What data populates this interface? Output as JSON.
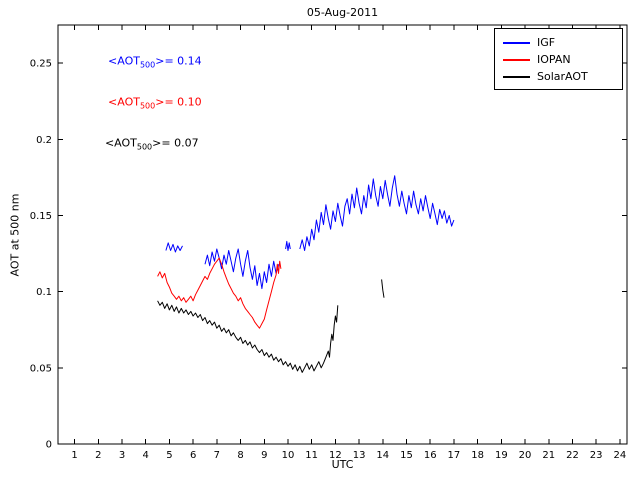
{
  "chart_data": {
    "type": "line",
    "title": "05-Aug-2011",
    "xlabel": "UTC",
    "ylabel": "AOT at 500 nm",
    "xlim": [
      0.3,
      24.3
    ],
    "ylim": [
      0,
      0.275
    ],
    "x_ticks": [
      1,
      2,
      3,
      4,
      5,
      6,
      7,
      8,
      9,
      10,
      11,
      12,
      13,
      14,
      15,
      16,
      17,
      18,
      19,
      20,
      21,
      22,
      23,
      24
    ],
    "y_ticks": [
      0,
      0.05,
      0.1,
      0.15,
      0.2,
      0.25
    ],
    "y_tick_labels": [
      "0",
      "0.05",
      "0.1",
      "0.15",
      "0.2",
      "0.25"
    ],
    "grid": false,
    "legend": {
      "position": "top-right",
      "entries": [
        {
          "label": "IGF",
          "color": "#0000ff"
        },
        {
          "label": "IOPAN",
          "color": "#ff0000"
        },
        {
          "label": "SolarAOT",
          "color": "#000000"
        }
      ]
    },
    "annotations": [
      {
        "prefix": "<AOT",
        "sub": "500",
        "suffix": ">= 0.14",
        "color": "#0000ff",
        "x": 2.41,
        "y": 0.251
      },
      {
        "prefix": "<AOT",
        "sub": "500",
        "suffix": ">= 0.10",
        "color": "#ff0000",
        "x": 2.41,
        "y": 0.224
      },
      {
        "prefix": "<AOT",
        "sub": "500",
        "suffix": ">= 0.07",
        "color": "#000000",
        "x": 2.28,
        "y": 0.197
      }
    ],
    "series": [
      {
        "name": "IGF",
        "color": "#0000ff",
        "mean_aot_500": 0.14,
        "segments": [
          [
            [
              4.85,
              0.127
            ],
            [
              4.95,
              0.132
            ],
            [
              5.05,
              0.127
            ],
            [
              5.15,
              0.131
            ],
            [
              5.25,
              0.126
            ],
            [
              5.35,
              0.13
            ],
            [
              5.45,
              0.127
            ],
            [
              5.55,
              0.13
            ]
          ],
          [
            [
              6.5,
              0.118
            ],
            [
              6.6,
              0.124
            ],
            [
              6.7,
              0.117
            ],
            [
              6.8,
              0.126
            ],
            [
              6.9,
              0.12
            ],
            [
              7.0,
              0.128
            ],
            [
              7.1,
              0.122
            ],
            [
              7.2,
              0.115
            ],
            [
              7.3,
              0.124
            ],
            [
              7.4,
              0.118
            ],
            [
              7.5,
              0.127
            ],
            [
              7.6,
              0.12
            ],
            [
              7.7,
              0.113
            ],
            [
              7.8,
              0.122
            ],
            [
              7.9,
              0.128
            ],
            [
              8.0,
              0.118
            ],
            [
              8.1,
              0.11
            ],
            [
              8.2,
              0.12
            ],
            [
              8.3,
              0.127
            ],
            [
              8.4,
              0.116
            ],
            [
              8.5,
              0.108
            ],
            [
              8.6,
              0.117
            ],
            [
              8.7,
              0.104
            ],
            [
              8.8,
              0.112
            ],
            [
              8.9,
              0.102
            ],
            [
              9.0,
              0.113
            ],
            [
              9.1,
              0.106
            ],
            [
              9.2,
              0.118
            ],
            [
              9.3,
              0.11
            ],
            [
              9.4,
              0.12
            ],
            [
              9.5,
              0.112
            ],
            [
              9.6,
              0.118
            ]
          ],
          [
            [
              9.9,
              0.128
            ],
            [
              9.95,
              0.133
            ],
            [
              10.0,
              0.127
            ],
            [
              10.05,
              0.132
            ],
            [
              10.1,
              0.128
            ]
          ],
          [
            [
              10.5,
              0.128
            ],
            [
              10.6,
              0.134
            ],
            [
              10.7,
              0.127
            ],
            [
              10.8,
              0.136
            ],
            [
              10.9,
              0.13
            ],
            [
              11.0,
              0.141
            ],
            [
              11.1,
              0.134
            ],
            [
              11.2,
              0.147
            ],
            [
              11.3,
              0.139
            ],
            [
              11.4,
              0.152
            ],
            [
              11.5,
              0.144
            ],
            [
              11.6,
              0.157
            ],
            [
              11.7,
              0.148
            ],
            [
              11.8,
              0.141
            ],
            [
              11.9,
              0.153
            ],
            [
              12.0,
              0.146
            ],
            [
              12.1,
              0.158
            ],
            [
              12.2,
              0.15
            ],
            [
              12.3,
              0.143
            ],
            [
              12.4,
              0.156
            ],
            [
              12.5,
              0.161
            ],
            [
              12.6,
              0.151
            ],
            [
              12.7,
              0.164
            ],
            [
              12.8,
              0.155
            ],
            [
              12.9,
              0.168
            ],
            [
              13.0,
              0.158
            ],
            [
              13.1,
              0.151
            ],
            [
              13.2,
              0.163
            ],
            [
              13.3,
              0.155
            ],
            [
              13.4,
              0.17
            ],
            [
              13.5,
              0.161
            ],
            [
              13.6,
              0.174
            ],
            [
              13.7,
              0.163
            ],
            [
              13.8,
              0.156
            ],
            [
              13.9,
              0.169
            ],
            [
              14.0,
              0.161
            ],
            [
              14.1,
              0.173
            ],
            [
              14.2,
              0.164
            ],
            [
              14.3,
              0.156
            ],
            [
              14.4,
              0.168
            ],
            [
              14.5,
              0.176
            ],
            [
              14.6,
              0.164
            ],
            [
              14.7,
              0.156
            ],
            [
              14.8,
              0.166
            ],
            [
              14.9,
              0.158
            ],
            [
              15.0,
              0.151
            ],
            [
              15.1,
              0.163
            ],
            [
              15.2,
              0.155
            ],
            [
              15.3,
              0.166
            ],
            [
              15.4,
              0.157
            ],
            [
              15.5,
              0.151
            ],
            [
              15.6,
              0.161
            ],
            [
              15.7,
              0.153
            ],
            [
              15.8,
              0.163
            ],
            [
              15.9,
              0.155
            ],
            [
              16.0,
              0.148
            ],
            [
              16.1,
              0.158
            ],
            [
              16.2,
              0.151
            ],
            [
              16.3,
              0.144
            ],
            [
              16.4,
              0.154
            ],
            [
              16.5,
              0.148
            ],
            [
              16.6,
              0.153
            ],
            [
              16.7,
              0.145
            ],
            [
              16.8,
              0.15
            ],
            [
              16.9,
              0.143
            ],
            [
              17.0,
              0.147
            ]
          ]
        ]
      },
      {
        "name": "IOPAN",
        "color": "#ff0000",
        "mean_aot_500": 0.1,
        "segments": [
          [
            [
              4.5,
              0.11
            ],
            [
              4.6,
              0.113
            ],
            [
              4.7,
              0.109
            ],
            [
              4.8,
              0.112
            ],
            [
              4.9,
              0.106
            ],
            [
              5.0,
              0.103
            ],
            [
              5.1,
              0.099
            ],
            [
              5.2,
              0.097
            ],
            [
              5.3,
              0.095
            ],
            [
              5.4,
              0.097
            ],
            [
              5.5,
              0.094
            ],
            [
              5.6,
              0.096
            ],
            [
              5.7,
              0.093
            ],
            [
              5.8,
              0.095
            ],
            [
              5.9,
              0.097
            ],
            [
              6.0,
              0.094
            ],
            [
              6.1,
              0.098
            ],
            [
              6.2,
              0.101
            ],
            [
              6.3,
              0.104
            ],
            [
              6.4,
              0.107
            ],
            [
              6.5,
              0.11
            ],
            [
              6.6,
              0.108
            ],
            [
              6.7,
              0.112
            ],
            [
              6.8,
              0.115
            ],
            [
              6.9,
              0.118
            ],
            [
              7.0,
              0.12
            ],
            [
              7.1,
              0.122
            ],
            [
              7.2,
              0.118
            ],
            [
              7.3,
              0.113
            ],
            [
              7.4,
              0.109
            ],
            [
              7.5,
              0.105
            ],
            [
              7.6,
              0.102
            ],
            [
              7.7,
              0.099
            ],
            [
              7.8,
              0.097
            ],
            [
              7.9,
              0.094
            ],
            [
              8.0,
              0.096
            ],
            [
              8.1,
              0.092
            ],
            [
              8.2,
              0.089
            ],
            [
              8.3,
              0.087
            ],
            [
              8.4,
              0.085
            ],
            [
              8.5,
              0.083
            ],
            [
              8.6,
              0.08
            ],
            [
              8.7,
              0.078
            ],
            [
              8.8,
              0.076
            ],
            [
              8.9,
              0.079
            ],
            [
              9.0,
              0.082
            ],
            [
              9.1,
              0.088
            ],
            [
              9.2,
              0.094
            ],
            [
              9.3,
              0.1
            ],
            [
              9.4,
              0.106
            ],
            [
              9.5,
              0.111
            ],
            [
              9.55,
              0.118
            ],
            [
              9.6,
              0.112
            ],
            [
              9.65,
              0.12
            ],
            [
              9.7,
              0.115
            ]
          ]
        ]
      },
      {
        "name": "SolarAOT",
        "color": "#000000",
        "mean_aot_500": 0.07,
        "segments": [
          [
            [
              4.5,
              0.094
            ],
            [
              4.6,
              0.091
            ],
            [
              4.7,
              0.093
            ],
            [
              4.8,
              0.089
            ],
            [
              4.9,
              0.092
            ],
            [
              5.0,
              0.088
            ],
            [
              5.1,
              0.091
            ],
            [
              5.2,
              0.087
            ],
            [
              5.3,
              0.09
            ],
            [
              5.4,
              0.086
            ],
            [
              5.5,
              0.089
            ],
            [
              5.6,
              0.086
            ],
            [
              5.7,
              0.088
            ],
            [
              5.8,
              0.085
            ],
            [
              5.9,
              0.087
            ],
            [
              6.0,
              0.084
            ],
            [
              6.1,
              0.086
            ],
            [
              6.2,
              0.083
            ],
            [
              6.3,
              0.085
            ],
            [
              6.4,
              0.081
            ],
            [
              6.5,
              0.083
            ],
            [
              6.6,
              0.079
            ],
            [
              6.7,
              0.081
            ],
            [
              6.8,
              0.078
            ],
            [
              6.9,
              0.08
            ],
            [
              7.0,
              0.076
            ],
            [
              7.1,
              0.078
            ],
            [
              7.2,
              0.074
            ],
            [
              7.3,
              0.076
            ],
            [
              7.4,
              0.073
            ],
            [
              7.5,
              0.075
            ],
            [
              7.6,
              0.071
            ],
            [
              7.7,
              0.073
            ],
            [
              7.8,
              0.07
            ],
            [
              7.9,
              0.068
            ],
            [
              8.0,
              0.07
            ],
            [
              8.1,
              0.066
            ],
            [
              8.2,
              0.068
            ],
            [
              8.3,
              0.065
            ],
            [
              8.4,
              0.067
            ],
            [
              8.5,
              0.063
            ],
            [
              8.6,
              0.065
            ],
            [
              8.7,
              0.062
            ],
            [
              8.8,
              0.06
            ],
            [
              8.9,
              0.062
            ],
            [
              9.0,
              0.058
            ],
            [
              9.1,
              0.06
            ],
            [
              9.2,
              0.057
            ],
            [
              9.3,
              0.059
            ],
            [
              9.4,
              0.055
            ],
            [
              9.5,
              0.057
            ],
            [
              9.6,
              0.054
            ],
            [
              9.7,
              0.056
            ],
            [
              9.8,
              0.052
            ],
            [
              9.9,
              0.054
            ],
            [
              10.0,
              0.051
            ],
            [
              10.1,
              0.053
            ],
            [
              10.2,
              0.049
            ],
            [
              10.3,
              0.052
            ],
            [
              10.4,
              0.048
            ],
            [
              10.5,
              0.051
            ],
            [
              10.6,
              0.047
            ],
            [
              10.7,
              0.05
            ],
            [
              10.8,
              0.053
            ],
            [
              10.9,
              0.049
            ],
            [
              11.0,
              0.052
            ],
            [
              11.1,
              0.048
            ],
            [
              11.2,
              0.051
            ],
            [
              11.3,
              0.054
            ],
            [
              11.4,
              0.05
            ],
            [
              11.5,
              0.053
            ],
            [
              11.6,
              0.057
            ],
            [
              11.7,
              0.061
            ],
            [
              11.75,
              0.057
            ],
            [
              11.8,
              0.066
            ],
            [
              11.85,
              0.072
            ],
            [
              11.9,
              0.068
            ],
            [
              11.95,
              0.078
            ],
            [
              12.0,
              0.084
            ],
            [
              12.05,
              0.08
            ],
            [
              12.1,
              0.091
            ]
          ],
          [
            [
              13.95,
              0.108
            ],
            [
              14.0,
              0.101
            ],
            [
              14.05,
              0.096
            ]
          ]
        ]
      }
    ]
  }
}
